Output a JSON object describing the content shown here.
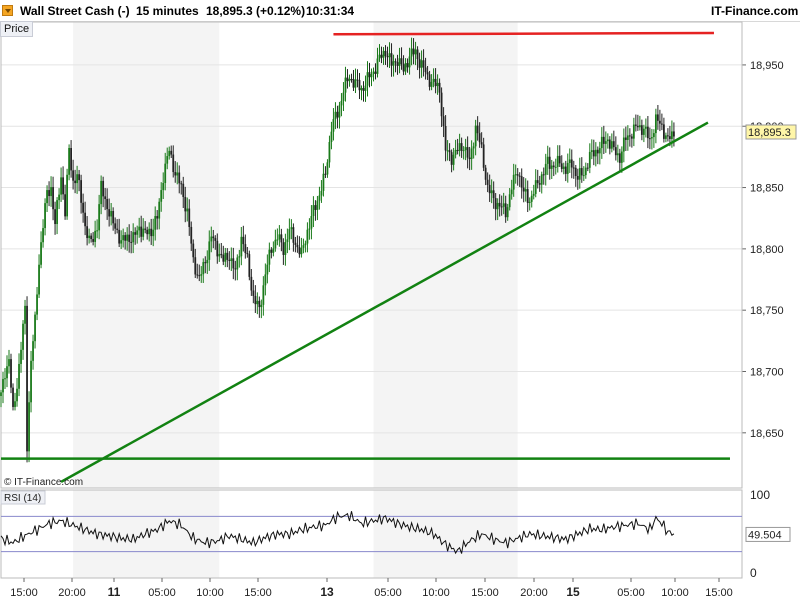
{
  "header": {
    "instrument": "Wall Street Cash (-)",
    "interval": "15 minutes",
    "price_change": "18,895.3 (+0.12%)",
    "time": "10:31:34",
    "site": "IT-Finance.com"
  },
  "labels": {
    "price_panel": "Price",
    "rsi_panel": "RSI (14)",
    "watermark": "© IT-Finance.com"
  },
  "colors": {
    "up_candle": "#1a7a1a",
    "down_candle": "#222222",
    "resistance": "#e52222",
    "support": "#128212",
    "trend": "#128212",
    "rsi_line": "#111111",
    "rsi_band": "#8888cc",
    "last_price_tag": "#fff6a8"
  },
  "chart_data": {
    "type": "candlestick",
    "title": "Wall Street Cash (-) 15 minutes",
    "ylim": [
      18605,
      18985
    ],
    "y_ticks": [
      "18,650",
      "18,700",
      "18,750",
      "18,800",
      "18,850",
      "18,900",
      "18,950"
    ],
    "x_ticks": [
      "15:00",
      "20:00",
      "11",
      "05:00",
      "10:00",
      "15:00",
      "13",
      "05:00",
      "10:00",
      "15:00",
      "20:00",
      "15",
      "05:00",
      "10:00",
      "15:00"
    ],
    "x_tick_bold": [
      false,
      false,
      true,
      false,
      false,
      false,
      true,
      false,
      false,
      false,
      false,
      true,
      false,
      false,
      false
    ],
    "last_price": 18895.3,
    "last_price_label": "18,895.3",
    "price_series": [
      [
        0,
        18680
      ],
      [
        2,
        18700
      ],
      [
        4,
        18710
      ],
      [
        6,
        18665
      ],
      [
        8,
        18690
      ],
      [
        10,
        18720
      ],
      [
        12,
        18750
      ],
      [
        13,
        18640
      ],
      [
        15,
        18710
      ],
      [
        17,
        18740
      ],
      [
        19,
        18790
      ],
      [
        21,
        18820
      ],
      [
        23,
        18845
      ],
      [
        25,
        18850
      ],
      [
        27,
        18820
      ],
      [
        30,
        18860
      ],
      [
        32,
        18830
      ],
      [
        34,
        18880
      ],
      [
        36,
        18855
      ],
      [
        38,
        18860
      ],
      [
        40,
        18840
      ],
      [
        42,
        18820
      ],
      [
        44,
        18805
      ],
      [
        46,
        18808
      ],
      [
        48,
        18820
      ],
      [
        50,
        18850
      ],
      [
        52,
        18840
      ],
      [
        54,
        18830
      ],
      [
        56,
        18820
      ],
      [
        58,
        18815
      ],
      [
        60,
        18805
      ],
      [
        63,
        18810
      ],
      [
        66,
        18808
      ],
      [
        69,
        18818
      ],
      [
        72,
        18812
      ],
      [
        75,
        18815
      ],
      [
        78,
        18825
      ],
      [
        81,
        18860
      ],
      [
        84,
        18880
      ],
      [
        87,
        18862
      ],
      [
        90,
        18850
      ],
      [
        93,
        18830
      ],
      [
        96,
        18790
      ],
      [
        99,
        18775
      ],
      [
        102,
        18790
      ],
      [
        105,
        18810
      ],
      [
        108,
        18800
      ],
      [
        111,
        18790
      ],
      [
        114,
        18795
      ],
      [
        117,
        18780
      ],
      [
        120,
        18810
      ],
      [
        123,
        18790
      ],
      [
        126,
        18760
      ],
      [
        129,
        18750
      ],
      [
        132,
        18780
      ],
      [
        135,
        18800
      ],
      [
        138,
        18810
      ],
      [
        141,
        18800
      ],
      [
        144,
        18815
      ],
      [
        147,
        18805
      ],
      [
        150,
        18795
      ],
      [
        153,
        18815
      ],
      [
        156,
        18830
      ],
      [
        159,
        18845
      ],
      [
        162,
        18860
      ],
      [
        165,
        18900
      ],
      [
        168,
        18910
      ],
      [
        171,
        18930
      ],
      [
        174,
        18940
      ],
      [
        177,
        18935
      ],
      [
        180,
        18930
      ],
      [
        183,
        18938
      ],
      [
        186,
        18945
      ],
      [
        189,
        18955
      ],
      [
        192,
        18962
      ],
      [
        195,
        18950
      ],
      [
        198,
        18955
      ],
      [
        201,
        18945
      ],
      [
        204,
        18958
      ],
      [
        207,
        18960
      ],
      [
        210,
        18950
      ],
      [
        213,
        18940
      ],
      [
        216,
        18935
      ],
      [
        219,
        18930
      ],
      [
        222,
        18880
      ],
      [
        225,
        18875
      ],
      [
        228,
        18880
      ],
      [
        231,
        18885
      ],
      [
        234,
        18870
      ],
      [
        237,
        18900
      ],
      [
        240,
        18880
      ],
      [
        243,
        18850
      ],
      [
        246,
        18840
      ],
      [
        249,
        18835
      ],
      [
        252,
        18830
      ],
      [
        255,
        18850
      ],
      [
        258,
        18865
      ],
      [
        261,
        18845
      ],
      [
        264,
        18840
      ],
      [
        267,
        18850
      ],
      [
        270,
        18860
      ],
      [
        273,
        18870
      ],
      [
        276,
        18868
      ],
      [
        279,
        18870
      ],
      [
        282,
        18865
      ],
      [
        285,
        18870
      ],
      [
        288,
        18858
      ],
      [
        291,
        18862
      ],
      [
        294,
        18875
      ],
      [
        297,
        18880
      ],
      [
        300,
        18885
      ],
      [
        303,
        18890
      ],
      [
        306,
        18880
      ],
      [
        309,
        18875
      ],
      [
        312,
        18890
      ],
      [
        315,
        18895
      ],
      [
        318,
        18900
      ],
      [
        321,
        18898
      ],
      [
        324,
        18888
      ],
      [
        327,
        18905
      ],
      [
        330,
        18900
      ],
      [
        333,
        18888
      ],
      [
        336,
        18895
      ]
    ],
    "resistance": {
      "x0": 166,
      "x1": 356,
      "y0": 18975,
      "y1": 18976
    },
    "support": {
      "x0": 0,
      "x1": 364,
      "y": 18629
    },
    "trendline": {
      "x0": 30,
      "x1": 353,
      "y0": 18610,
      "y1": 18903
    },
    "rsi": {
      "label": "RSI (14)",
      "ylim": [
        0,
        100
      ],
      "ticks": [
        "100",
        "0"
      ],
      "bands": [
        70,
        30
      ],
      "last_value": 49.504,
      "last_value_label": "49.504",
      "series": [
        [
          0,
          45
        ],
        [
          6,
          40
        ],
        [
          12,
          48
        ],
        [
          18,
          55
        ],
        [
          24,
          62
        ],
        [
          30,
          65
        ],
        [
          36,
          60
        ],
        [
          42,
          55
        ],
        [
          48,
          50
        ],
        [
          54,
          48
        ],
        [
          60,
          45
        ],
        [
          66,
          44
        ],
        [
          72,
          50
        ],
        [
          78,
          55
        ],
        [
          84,
          65
        ],
        [
          90,
          60
        ],
        [
          96,
          45
        ],
        [
          102,
          40
        ],
        [
          108,
          42
        ],
        [
          114,
          48
        ],
        [
          120,
          44
        ],
        [
          126,
          40
        ],
        [
          132,
          46
        ],
        [
          138,
          50
        ],
        [
          144,
          50
        ],
        [
          150,
          55
        ],
        [
          156,
          58
        ],
        [
          162,
          60
        ],
        [
          168,
          70
        ],
        [
          174,
          71
        ],
        [
          180,
          62
        ],
        [
          186,
          65
        ],
        [
          192,
          68
        ],
        [
          198,
          62
        ],
        [
          204,
          58
        ],
        [
          210,
          55
        ],
        [
          216,
          50
        ],
        [
          222,
          38
        ],
        [
          228,
          30
        ],
        [
          234,
          42
        ],
        [
          240,
          50
        ],
        [
          246,
          44
        ],
        [
          252,
          40
        ],
        [
          258,
          45
        ],
        [
          264,
          50
        ],
        [
          270,
          48
        ],
        [
          276,
          46
        ],
        [
          282,
          44
        ],
        [
          288,
          50
        ],
        [
          294,
          56
        ],
        [
          300,
          55
        ],
        [
          306,
          58
        ],
        [
          312,
          60
        ],
        [
          318,
          62
        ],
        [
          324,
          55
        ],
        [
          327,
          68
        ],
        [
          330,
          62
        ],
        [
          333,
          52
        ],
        [
          336,
          50
        ]
      ]
    }
  }
}
